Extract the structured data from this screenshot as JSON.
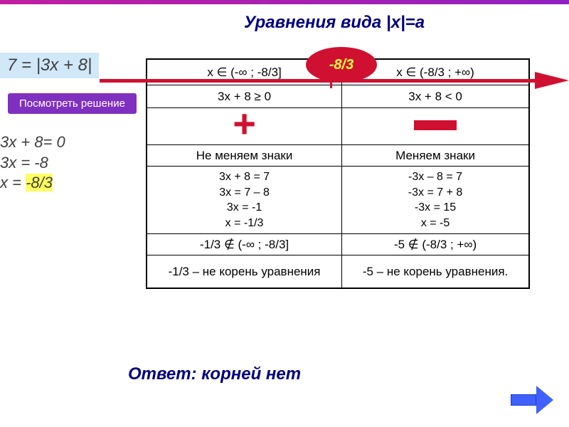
{
  "title": "Уравнения вида |x|=a",
  "equation": "7 = |3x + 8|",
  "view_button": "Посмотреть решение",
  "working": {
    "line1": "3x + 8= 0",
    "line2": "3x =  -8",
    "line3_pre": "x = ",
    "line3_hl": "-8/3"
  },
  "oval_label": "-8/3",
  "table": {
    "interval_left": "x ∈ (-∞ ; -8/3]",
    "interval_right": "x ∈ (-8/3 ; +∞)",
    "cond_left": "3x + 8 ≥ 0",
    "cond_right": "3x + 8 < 0",
    "label_left": "Не меняем знаки",
    "label_right": "Меняем знаки",
    "solve_left_l1": "3x + 8 = 7",
    "solve_left_l2": "3x = 7 – 8",
    "solve_left_l3": "3x = -1",
    "solve_left_l4": "x = -1/3",
    "solve_right_l1": "-3x – 8 = 7",
    "solve_right_l2": "-3x = 7 + 8",
    "solve_right_l3": "-3x = 15",
    "solve_right_l4": "x = -5",
    "check_left": "-1/3 ∉ (-∞ ; -8/3]",
    "check_right": "-5 ∉ (-8/3 ; +∞)",
    "concl_left": "-1/3 – не корень уравнения",
    "concl_right": "-5 – не корень уравнения."
  },
  "answer": "Ответ: корней нет",
  "colors": {
    "accent_red": "#d01030",
    "accent_purple": "#8030c0",
    "title_navy": "#000080",
    "highlight": "#ffff60",
    "eq_bg": "#d0e8f8",
    "nav_blue": "#4060ff"
  }
}
